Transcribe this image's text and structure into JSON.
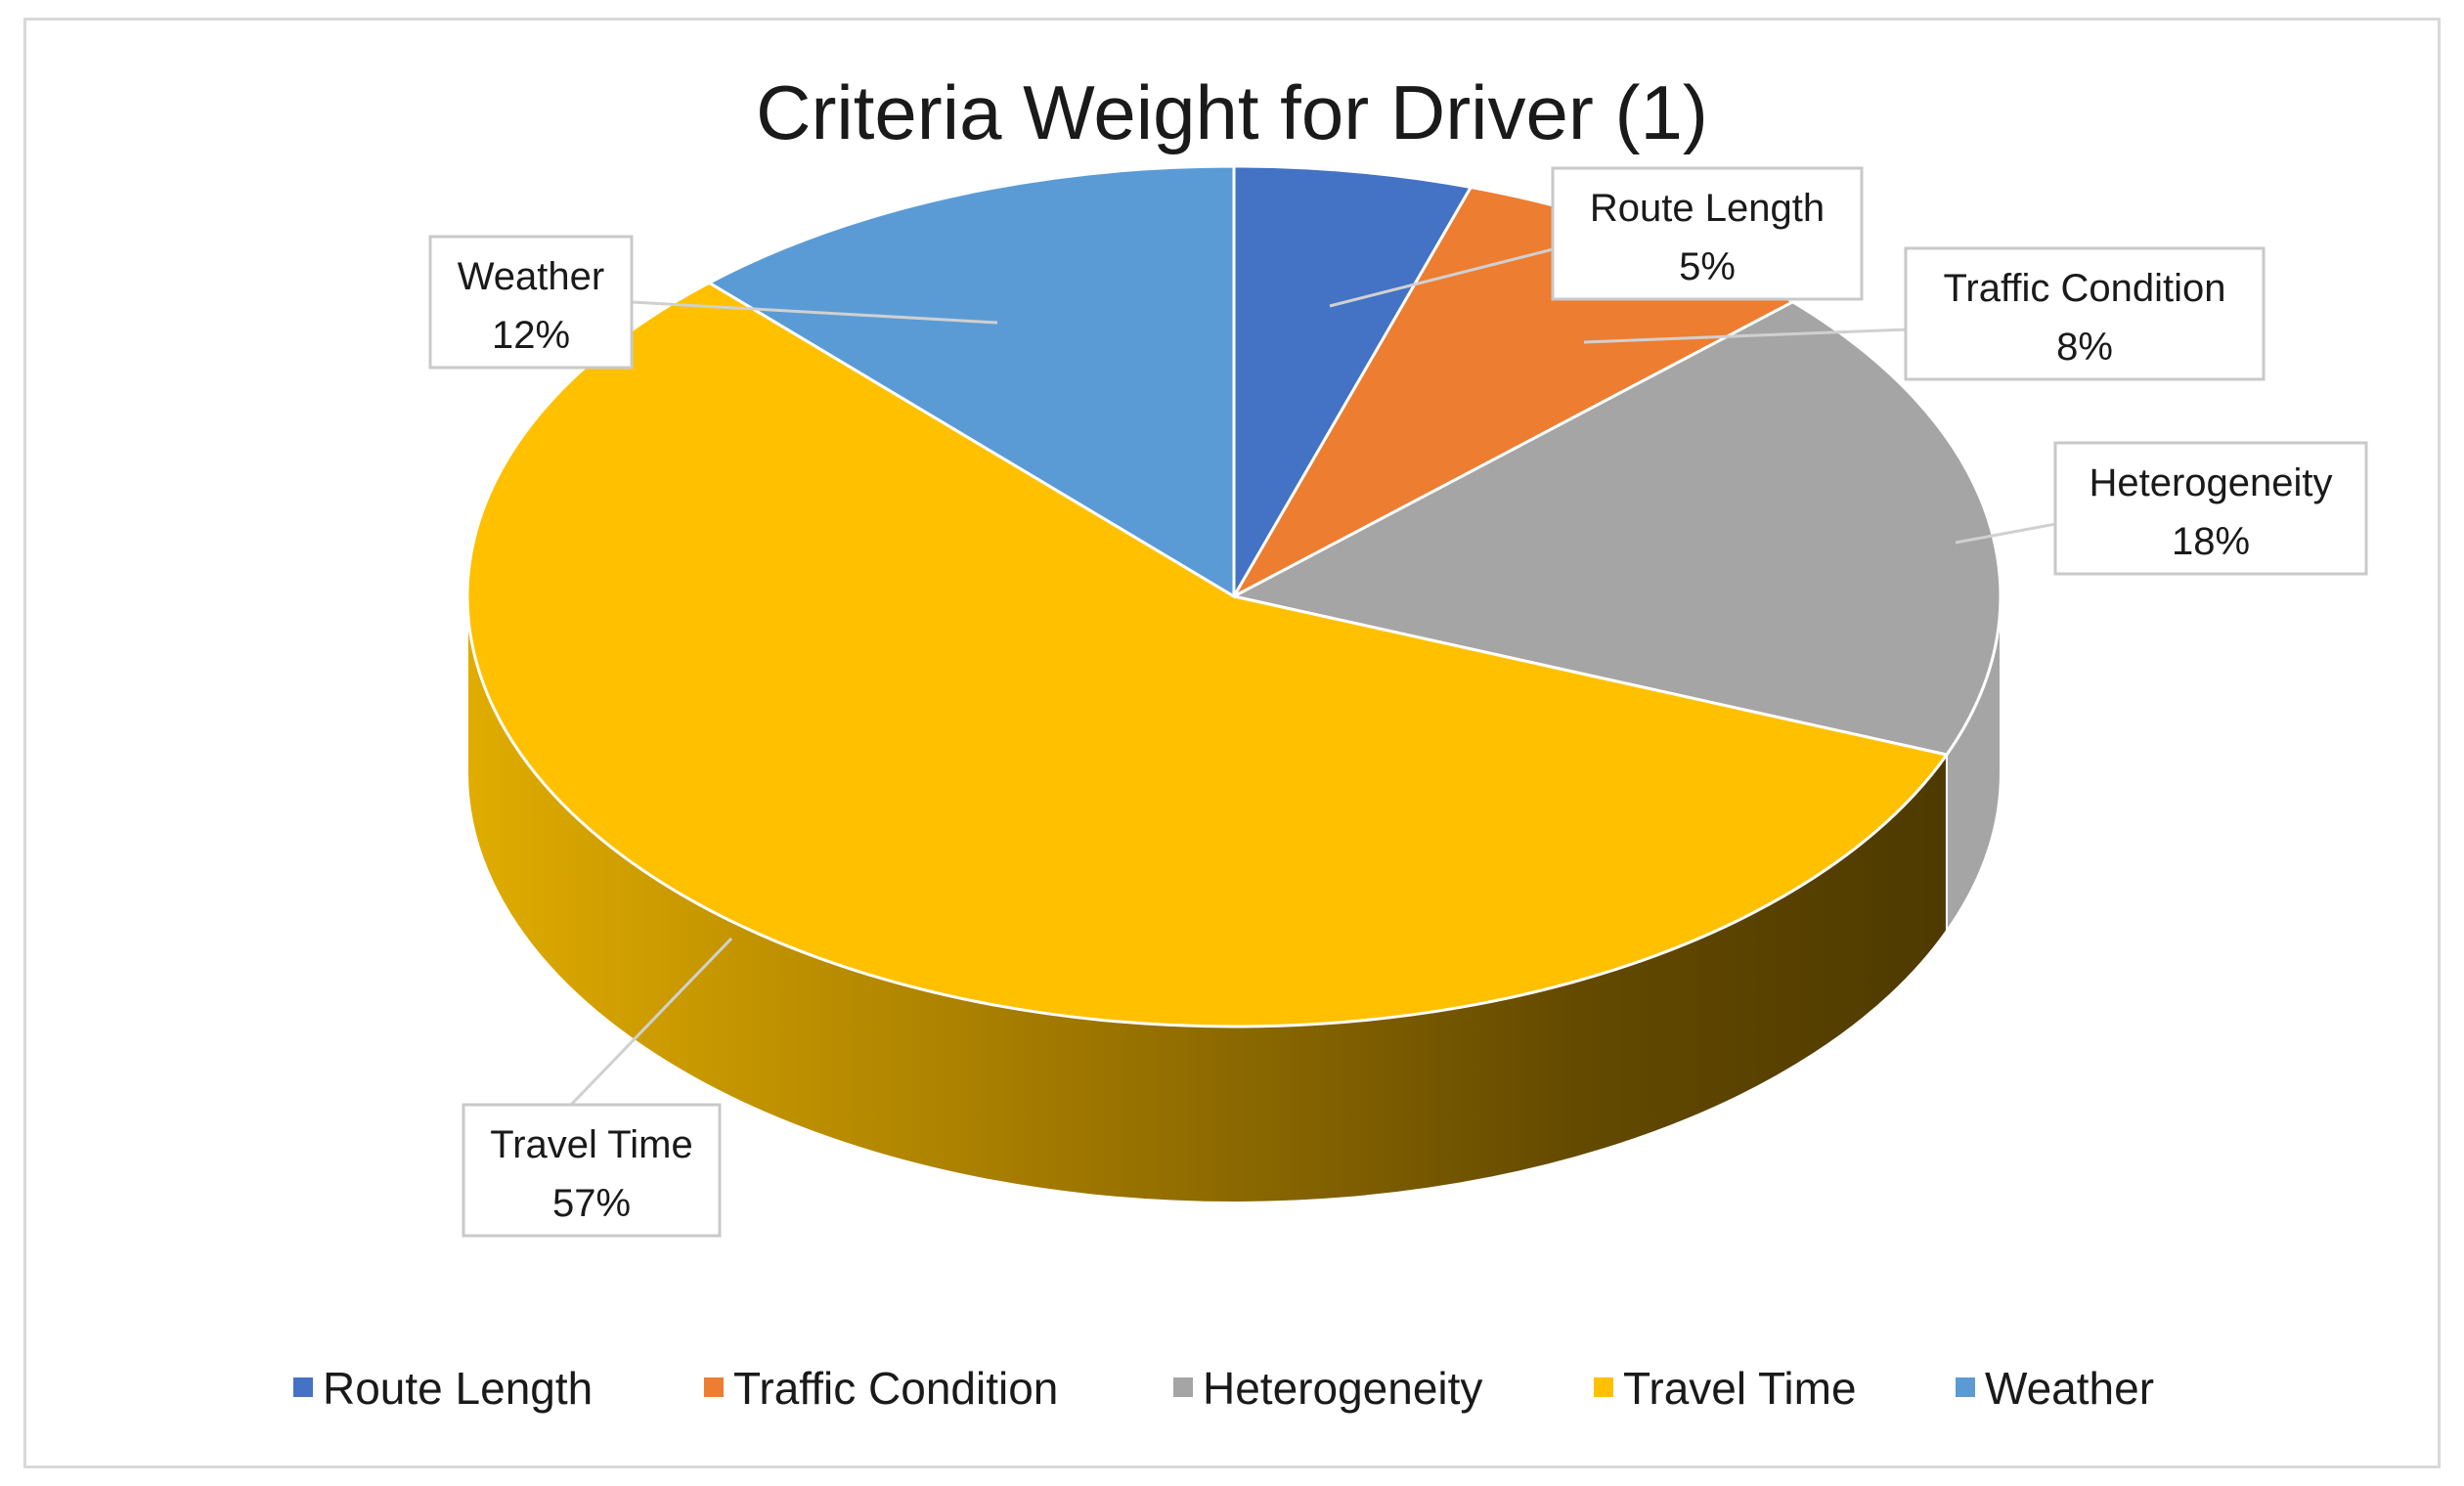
{
  "chart_data": {
    "type": "pie",
    "title": "Criteria Weight for Driver (1)",
    "categories": [
      "Route Length",
      "Traffic Condition",
      "Heterogeneity",
      "Travel Time",
      "Weather"
    ],
    "values": [
      5,
      8,
      18,
      57,
      12
    ],
    "unit": "%",
    "data_labels": [
      {
        "name": "Route Length",
        "value": "5%"
      },
      {
        "name": "Traffic Condition",
        "value": "8%"
      },
      {
        "name": "Heterogeneity",
        "value": "18%"
      },
      {
        "name": "Travel Time",
        "value": "57%"
      },
      {
        "name": "Weather",
        "value": "12%"
      }
    ],
    "colors": [
      "#4472C4",
      "#ED7D31",
      "#A5A5A5",
      "#FFC000",
      "#5B9BD5"
    ],
    "three_d": true,
    "legend_position": "bottom"
  }
}
